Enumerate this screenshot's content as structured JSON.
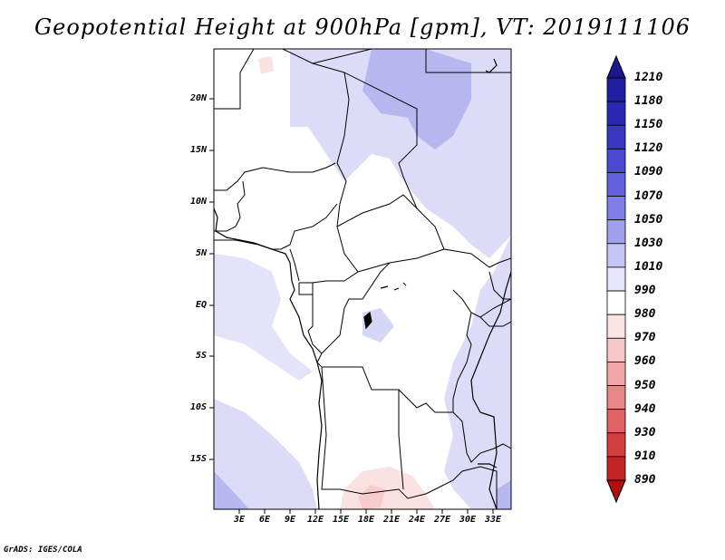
{
  "title": "Geopotential Height at 900hPa [gpm], VT: 2019111106",
  "credit": "GrADS: IGES/COLA",
  "map": {
    "lat_labels": [
      "20N",
      "15N",
      "10N",
      "5N",
      "EQ",
      "5S",
      "10S",
      "15S"
    ],
    "lon_labels": [
      "3E",
      "6E",
      "9E",
      "12E",
      "15E",
      "18E",
      "21E",
      "24E",
      "27E",
      "30E",
      "33E"
    ]
  },
  "colorbar": {
    "levels": [
      "1210",
      "1180",
      "1150",
      "1120",
      "1090",
      "1070",
      "1050",
      "1030",
      "1010",
      "990",
      "980",
      "970",
      "960",
      "950",
      "940",
      "930",
      "910",
      "890"
    ],
    "colors": [
      "#1a1a8c",
      "#1f1fa0",
      "#2929b4",
      "#3737c2",
      "#4a4ad0",
      "#6262dc",
      "#7e7ee6",
      "#a0a0ee",
      "#c6c6f6",
      "#e6e6fb",
      "#ffffff",
      "#fce3e3",
      "#f8c8c8",
      "#f2a8a8",
      "#ea8686",
      "#e06262",
      "#d43f3f",
      "#c42424",
      "#b01010"
    ]
  }
}
